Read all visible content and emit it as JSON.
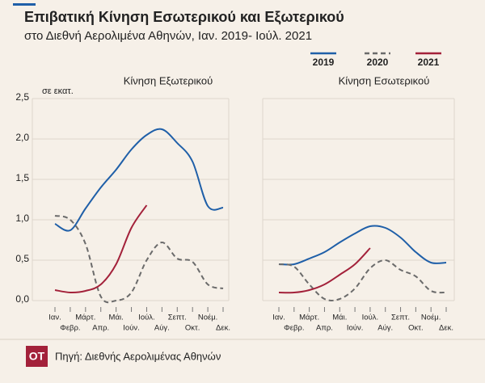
{
  "title": "Επιβατική Κίνηση Εσωτερικού και Εξωτερικού",
  "subtitle": "στο Διεθνή Αερολιμένα Αθηνών, Ιαν. 2019- Ιούλ. 2021",
  "source": "Πηγή: Διεθνής Αερολιμένας Αθηνών",
  "logo": "ΟΤ",
  "chart_data": [
    {
      "type": "line",
      "title": "Κίνηση Εξωτερικού",
      "ylabel": "σε εκατ.",
      "categories": [
        "Ιαν.",
        "Φεβρ.",
        "Μάρτ.",
        "Απρ.",
        "Μάι.",
        "Ιούν.",
        "Ιούλ.",
        "Αύγ.",
        "Σεπτ.",
        "Οκτ.",
        "Νοέμ.",
        "Δεκ."
      ],
      "ylim": [
        0,
        2.5
      ],
      "yticks": [
        {
          "value": 0,
          "label": "0,0"
        },
        {
          "value": 0.5,
          "label": "0,5"
        },
        {
          "value": 1,
          "label": "1,0"
        },
        {
          "value": 1.5,
          "label": "1,5"
        },
        {
          "value": 2,
          "label": "2,0"
        },
        {
          "value": 2.5,
          "label": "2,5"
        }
      ],
      "grid": true,
      "series": [
        {
          "name": "2019",
          "color": "#1f5fa8",
          "values": [
            0.95,
            0.87,
            1.14,
            1.4,
            1.62,
            1.87,
            2.05,
            2.12,
            1.95,
            1.72,
            1.17,
            1.15
          ]
        },
        {
          "name": "2020",
          "color": "#6b6b6b",
          "dashed": true,
          "values": [
            1.05,
            1.0,
            0.7,
            0.05,
            0.0,
            0.1,
            0.5,
            0.72,
            0.52,
            0.48,
            0.2,
            0.15
          ]
        },
        {
          "name": "2021",
          "color": "#a3213a",
          "values": [
            0.13,
            0.1,
            0.12,
            0.2,
            0.45,
            0.9,
            1.18,
            null,
            null,
            null,
            null,
            null
          ]
        }
      ]
    },
    {
      "type": "line",
      "title": "Κίνηση Εσωτερικού",
      "categories": [
        "Ιαν.",
        "Φεβρ.",
        "Μάρτ.",
        "Απρ.",
        "Μάι.",
        "Ιούν.",
        "Ιούλ.",
        "Αύγ.",
        "Σεπτ.",
        "Οκτ.",
        "Νοέμ.",
        "Δεκ."
      ],
      "ylim": [
        0,
        2.5
      ],
      "yticks": [
        0,
        0.5,
        1,
        1.5,
        2,
        2.5
      ],
      "grid": true,
      "series": [
        {
          "name": "2019",
          "color": "#1f5fa8",
          "values": [
            0.45,
            0.45,
            0.52,
            0.6,
            0.72,
            0.83,
            0.92,
            0.9,
            0.78,
            0.6,
            0.47,
            0.47
          ]
        },
        {
          "name": "2020",
          "color": "#6b6b6b",
          "dashed": true,
          "values": [
            0.45,
            0.42,
            0.2,
            0.02,
            0.02,
            0.15,
            0.4,
            0.5,
            0.38,
            0.3,
            0.12,
            0.1
          ]
        },
        {
          "name": "2021",
          "color": "#a3213a",
          "values": [
            0.1,
            0.1,
            0.13,
            0.2,
            0.32,
            0.45,
            0.65,
            null,
            null,
            null,
            null,
            null
          ]
        }
      ]
    }
  ]
}
